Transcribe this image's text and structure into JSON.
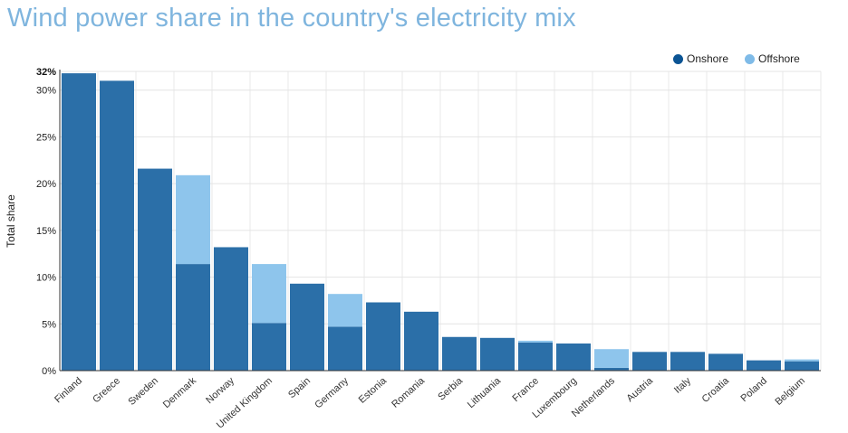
{
  "header": {
    "title": "Wind power share in the country's electricity mix"
  },
  "chart_data": {
    "type": "bar",
    "stacked": true,
    "title": "Wind power share in the country's electricity mix",
    "xlabel": "",
    "ylabel": "Total share",
    "ylim": [
      0,
      32
    ],
    "y_ticks": [
      0,
      5,
      10,
      15,
      20,
      25,
      30
    ],
    "y_tick_labels": [
      "0%",
      "5%",
      "10%",
      "15%",
      "20%",
      "25%",
      "30%"
    ],
    "y_max_label": "32%",
    "legend_position": "top-right",
    "grid": true,
    "categories": [
      "Finland",
      "Greece",
      "Sweden",
      "Denmark",
      "Norway",
      "United Kingdom",
      "Spain",
      "Germany",
      "Estonia",
      "Romania",
      "Serbia",
      "Lithuania",
      "France",
      "Luxembourg",
      "Netherlands",
      "Austria",
      "Italy",
      "Croatia",
      "Poland",
      "Belgium"
    ],
    "series": [
      {
        "name": "Onshore",
        "color": "#2b6fa8",
        "legend_color": "#0b5494",
        "values": [
          31.8,
          31.0,
          21.6,
          11.4,
          13.2,
          5.1,
          9.3,
          4.7,
          7.3,
          6.3,
          3.6,
          3.5,
          3.0,
          2.9,
          0.3,
          2.0,
          2.0,
          1.8,
          1.1,
          1.0
        ]
      },
      {
        "name": "Offshore",
        "color": "#8ec5ec",
        "legend_color": "#7fbbe8",
        "values": [
          0,
          0,
          0,
          9.5,
          0,
          6.3,
          0,
          3.5,
          0,
          0,
          0,
          0,
          0.2,
          0,
          2.0,
          0,
          0,
          0,
          0,
          0.2
        ]
      }
    ]
  }
}
